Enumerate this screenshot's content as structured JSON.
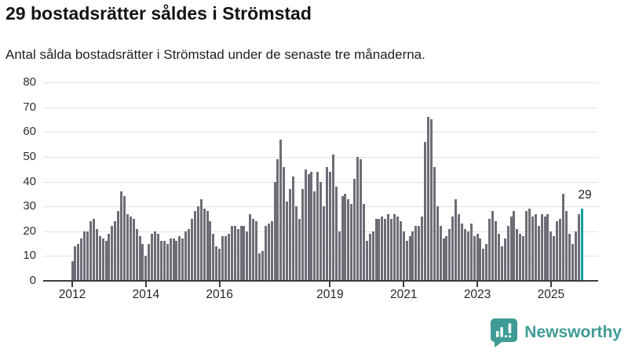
{
  "header": {
    "title": "29 bostadsrätter såldes i Strömstad",
    "subtitle": "Antal sålda bostadsrätter i Strömstad under de senaste tre månaderna."
  },
  "chart_data": {
    "type": "bar",
    "title": "29 bostadsrätter såldes i Strömstad",
    "subtitle": "Antal sålda bostadsrätter i Strömstad under de senaste tre månaderna.",
    "xlabel": "",
    "ylabel": "",
    "ylim": [
      0,
      80
    ],
    "yticks": [
      0,
      10,
      20,
      30,
      40,
      50,
      60,
      70,
      80
    ],
    "grid": true,
    "start_month": "2012-01",
    "end_month": "2025-11",
    "xtick_years": [
      2012,
      2014,
      2016,
      2019,
      2021,
      2023,
      2025
    ],
    "xtick_labels": [
      "2012",
      "2014",
      "2016",
      "2019",
      "2021",
      "2023",
      "2025"
    ],
    "bar_color": "#6d6d76",
    "highlight_color": "#12a1a0",
    "annotation": {
      "text": "29",
      "value": 29,
      "month": "2025-11"
    },
    "values": [
      8,
      14,
      15,
      17,
      20,
      20,
      24,
      25,
      21,
      18,
      17,
      16,
      19,
      22,
      24,
      28,
      36,
      34,
      27,
      26,
      25,
      21,
      18,
      15,
      10,
      15,
      19,
      20,
      19,
      16,
      16,
      15,
      17,
      17,
      16,
      18,
      17,
      20,
      21,
      25,
      28,
      30,
      33,
      29,
      28,
      24,
      19,
      14,
      13,
      18,
      18,
      19,
      22,
      22,
      21,
      22,
      22,
      20,
      27,
      25,
      24,
      11,
      12,
      22,
      23,
      24,
      40,
      49,
      57,
      46,
      32,
      37,
      42,
      30,
      25,
      37,
      45,
      43,
      44,
      36,
      44,
      40,
      30,
      46,
      44,
      51,
      38,
      20,
      34,
      35,
      33,
      31,
      41,
      50,
      49,
      31,
      16,
      19,
      20,
      25,
      25,
      26,
      25,
      27,
      25,
      27,
      26,
      24,
      20,
      16,
      18,
      20,
      22,
      22,
      26,
      56,
      66,
      65,
      46,
      30,
      22,
      17,
      18,
      21,
      26,
      33,
      27,
      23,
      21,
      20,
      23,
      18,
      19,
      17,
      13,
      15,
      25,
      28,
      24,
      19,
      14,
      17,
      22,
      26,
      28,
      21,
      19,
      18,
      28,
      29,
      26,
      27,
      22,
      27,
      26,
      27,
      20,
      18,
      24,
      25,
      35,
      28,
      19,
      15,
      20,
      27,
      29
    ]
  },
  "footer": {
    "brand": "Newsworthy",
    "brand_color": "#3e9b95"
  }
}
